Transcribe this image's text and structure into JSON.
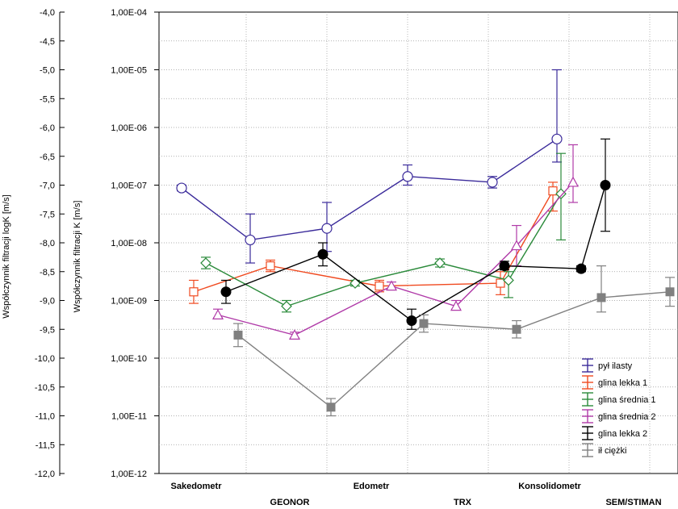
{
  "chart_data": {
    "type": "line",
    "ylabel_left": "Współczynnik filtracji logK [m/s]",
    "ylabel_right": "Współczynnik filtracji K [m/s]",
    "log_ticks": [
      "-4,0",
      "-4,5",
      "-5,0",
      "-5,5",
      "-6,0",
      "-6,5",
      "-7,0",
      "-7,5",
      "-8,0",
      "-8,5",
      "-9,0",
      "-9,5",
      "-10,0",
      "-10,5",
      "-11,0",
      "-11,5",
      "-12,0"
    ],
    "k_ticks": [
      "1,00E-04",
      "1,00E-05",
      "1,00E-06",
      "1,00E-07",
      "1,00E-08",
      "1,00E-09",
      "1,00E-10",
      "1,00E-11",
      "1,00E-12"
    ],
    "ylim_log": [
      -12,
      -4
    ],
    "grid": true,
    "legend_position": "bottom-right",
    "categories": [
      "Sakedometr",
      "GEONOR",
      "Edometr",
      "TRX",
      "Konsolidometr",
      "SEM/STIMAN"
    ],
    "series": [
      {
        "name": "pył ilasty",
        "color": "#3a2a9a",
        "marker": "circle-open",
        "points": [
          {
            "x": 0.15,
            "y": -7.05,
            "lo": -7.1,
            "hi": -7.0
          },
          {
            "x": 1.0,
            "y": -7.95,
            "lo": -8.35,
            "hi": -7.5
          },
          {
            "x": 1.95,
            "y": -7.75,
            "lo": -8.15,
            "hi": -7.3
          },
          {
            "x": 2.95,
            "y": -6.85,
            "lo": -7.0,
            "hi": -6.65
          },
          {
            "x": 4.0,
            "y": -6.95,
            "lo": -7.05,
            "hi": -6.85
          },
          {
            "x": 4.8,
            "y": -6.2,
            "lo": -6.6,
            "hi": -5.0
          }
        ]
      },
      {
        "name": "glina lekka 1",
        "color": "#f04a20",
        "marker": "square-open",
        "points": [
          {
            "x": 0.3,
            "y": -8.85,
            "lo": -9.05,
            "hi": -8.65
          },
          {
            "x": 1.25,
            "y": -8.4,
            "lo": -8.5,
            "hi": -8.3
          },
          {
            "x": 2.6,
            "y": -8.75,
            "lo": -8.85,
            "hi": -8.65
          },
          {
            "x": 4.1,
            "y": -8.7,
            "lo": -8.9,
            "hi": -8.5
          },
          {
            "x": 4.75,
            "y": -7.1,
            "lo": -7.45,
            "hi": -6.95
          }
        ]
      },
      {
        "name": "glina średnia 1",
        "color": "#2a8a3a",
        "marker": "diamond-open",
        "points": [
          {
            "x": 0.45,
            "y": -8.35,
            "lo": -8.45,
            "hi": -8.25
          },
          {
            "x": 1.45,
            "y": -9.1,
            "lo": -9.2,
            "hi": -9.0
          },
          {
            "x": 2.3,
            "y": -8.7,
            "lo": -8.75,
            "hi": -8.65
          },
          {
            "x": 3.35,
            "y": -8.35,
            "lo": -8.42,
            "hi": -8.28
          },
          {
            "x": 4.2,
            "y": -8.65,
            "lo": -8.95,
            "hi": -8.5
          },
          {
            "x": 4.85,
            "y": -7.15,
            "lo": -7.95,
            "hi": -6.45
          }
        ]
      },
      {
        "name": "glina średnia 2",
        "color": "#b03aa8",
        "marker": "triangle-open",
        "points": [
          {
            "x": 0.6,
            "y": -9.25,
            "lo": -9.3,
            "hi": -9.15
          },
          {
            "x": 1.55,
            "y": -9.6,
            "lo": -9.65,
            "hi": -9.55
          },
          {
            "x": 2.75,
            "y": -8.75,
            "lo": -8.8,
            "hi": -8.68
          },
          {
            "x": 3.55,
            "y": -9.1,
            "lo": -9.15,
            "hi": -9.0
          },
          {
            "x": 4.3,
            "y": -8.05,
            "lo": -8.4,
            "hi": -7.7
          },
          {
            "x": 5.0,
            "y": -6.95,
            "lo": -7.3,
            "hi": -6.3
          }
        ]
      },
      {
        "name": "glina lekka 2",
        "color": "#000000",
        "marker": "circle-filled",
        "points": [
          {
            "x": 0.7,
            "y": -8.85,
            "lo": -9.05,
            "hi": -8.65
          },
          {
            "x": 1.9,
            "y": -8.2,
            "lo": -8.4,
            "hi": -8.0
          },
          {
            "x": 3.0,
            "y": -9.35,
            "lo": -9.5,
            "hi": -9.15
          },
          {
            "x": 4.15,
            "y": -8.4,
            "lo": -8.47,
            "hi": -8.32
          },
          {
            "x": 5.1,
            "y": -8.45,
            "lo": -8.5,
            "hi": -8.4
          },
          {
            "x": 5.4,
            "y": -7.0,
            "lo": -7.8,
            "hi": -6.2
          }
        ]
      },
      {
        "name": "ił ciężki",
        "color": "#808080",
        "marker": "square-filled",
        "points": [
          {
            "x": 0.85,
            "y": -9.6,
            "lo": -9.8,
            "hi": -9.4
          },
          {
            "x": 2.0,
            "y": -10.85,
            "lo": -11.0,
            "hi": -10.7
          },
          {
            "x": 3.15,
            "y": -9.4,
            "lo": -9.55,
            "hi": -9.25
          },
          {
            "x": 4.3,
            "y": -9.5,
            "lo": -9.65,
            "hi": -9.35
          },
          {
            "x": 5.35,
            "y": -8.95,
            "lo": -9.2,
            "hi": -8.4
          },
          {
            "x": 6.2,
            "y": -8.85,
            "lo": -9.1,
            "hi": -8.6
          }
        ]
      }
    ]
  }
}
